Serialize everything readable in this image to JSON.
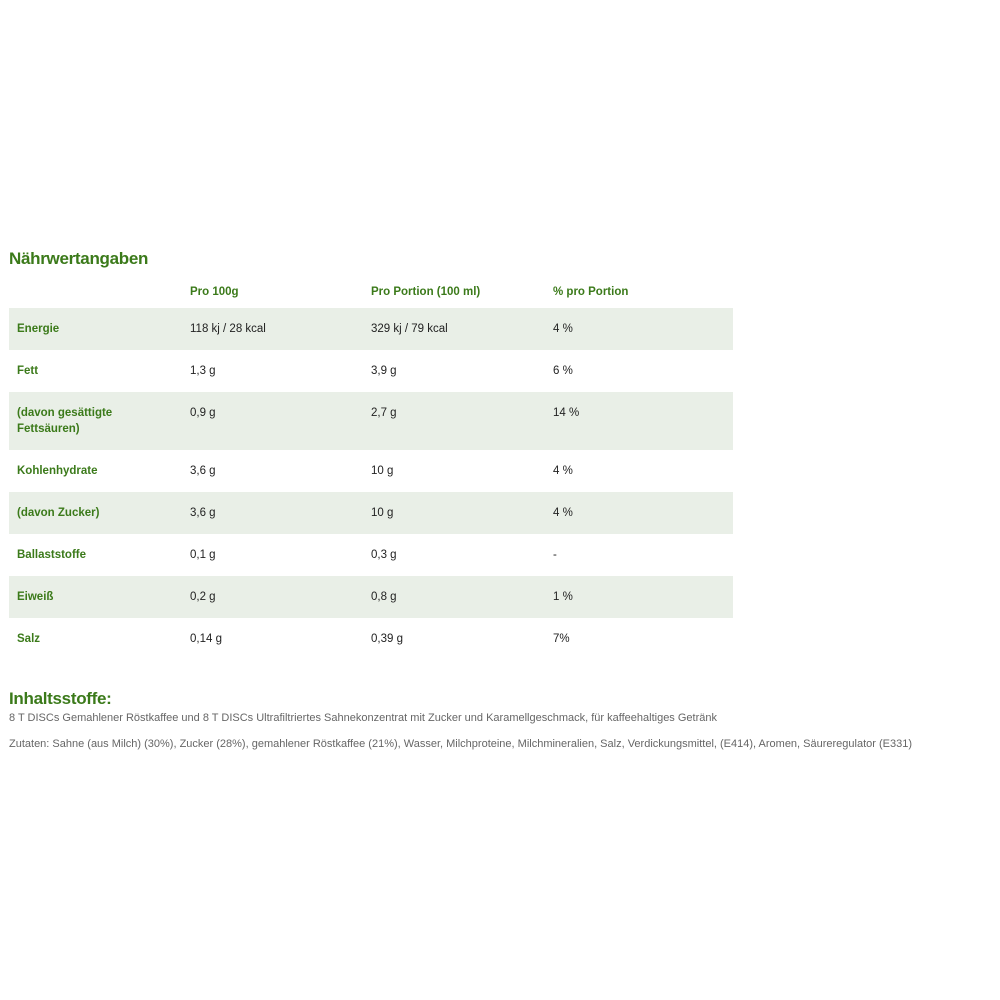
{
  "nutrition": {
    "title": "Nährwertangaben",
    "headers": [
      "",
      "Pro 100g",
      "Pro Portion (100 ml)",
      "% pro Portion"
    ],
    "rows": [
      [
        "Energie",
        "118 kj / 28 kcal",
        "329 kj / 79 kcal",
        "4 %"
      ],
      [
        "Fett",
        "1,3 g",
        "3,9 g",
        "6 %"
      ],
      [
        "(davon gesättigte Fettsäuren)",
        "0,9 g",
        "2,7 g",
        "14 %"
      ],
      [
        "Kohlenhydrate",
        "3,6 g",
        "10 g",
        "4 %"
      ],
      [
        "(davon Zucker)",
        "3,6 g",
        "10 g",
        "4 %"
      ],
      [
        "Ballaststoffe",
        "0,1 g",
        "0,3 g",
        "-"
      ],
      [
        "Eiweiß",
        "0,2 g",
        "0,8 g",
        "1 %"
      ],
      [
        "Salz",
        "0,14 g",
        "0,39 g",
        "7%"
      ]
    ]
  },
  "ingredients": {
    "title": "Inhaltsstoffe:",
    "description": "8 T DISCs Gemahlener Röstkaffee und 8 T DISCs Ultrafiltriertes Sahnekonzentrat mit Zucker und Karamellgeschmack, für kaffeehaltiges Getränk",
    "list": "Zutaten: Sahne (aus Milch) (30%), Zucker (28%), gemahlener Röstkaffee (21%), Wasser, Milchproteine, Milchmineralien, Salz, Verdickungsmittel, (E414), Aromen, Säureregulator (E331)"
  },
  "colors": {
    "accent": "#3b7a1a",
    "row_shade": "#e9efe7"
  }
}
